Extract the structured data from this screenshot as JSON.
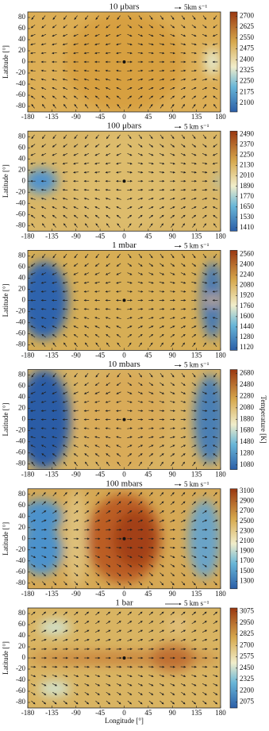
{
  "chart_data": [
    {
      "type": "heatmap",
      "title": "10 μbars",
      "wind_label": "5km s⁻¹",
      "ylabel": "Latitude [°]",
      "xlim": [
        -180,
        180
      ],
      "xticks": [
        -180,
        -135,
        -90,
        -45,
        0,
        45,
        90,
        135,
        180
      ],
      "ylim": [
        -90,
        90
      ],
      "yticks": [
        -80,
        -60,
        -40,
        -20,
        0,
        20,
        40,
        60,
        80
      ],
      "clim": [
        2040,
        2730
      ],
      "cticks": [
        2100,
        2175,
        2250,
        2325,
        2400,
        2475,
        2550,
        2625,
        2700
      ]
    },
    {
      "type": "heatmap",
      "title": "100 μbars",
      "wind_label": "5 km s⁻¹",
      "ylabel": "Latitude [°]",
      "xlim": [
        -180,
        180
      ],
      "xticks": [
        -180,
        -135,
        -90,
        -45,
        0,
        45,
        90,
        135,
        180
      ],
      "ylim": [
        -90,
        90
      ],
      "yticks": [
        -80,
        -60,
        -40,
        -20,
        0,
        20,
        40,
        60,
        80
      ],
      "clim": [
        1370,
        2530
      ],
      "cticks": [
        1410,
        1530,
        1650,
        1770,
        1890,
        2010,
        2130,
        2250,
        2370,
        2490
      ]
    },
    {
      "type": "heatmap",
      "title": "1 mbar",
      "wind_label": "5 km s⁻¹",
      "ylabel": "Latitude [°]",
      "xlim": [
        -180,
        180
      ],
      "xticks": [
        -180,
        -135,
        -90,
        -45,
        0,
        45,
        90,
        135,
        180
      ],
      "ylim": [
        -90,
        90
      ],
      "yticks": [
        -80,
        -60,
        -40,
        -20,
        0,
        20,
        40,
        60,
        80
      ],
      "clim": [
        1080,
        2620
      ],
      "cticks": [
        1120,
        1280,
        1440,
        1600,
        1760,
        1920,
        2080,
        2240,
        2400,
        2560
      ]
    },
    {
      "type": "heatmap",
      "title": "10 mbars",
      "wind_label": "5 km s⁻¹",
      "ylabel": "Latitude [°]",
      "clabel": "Temperature [K]",
      "xlim": [
        -180,
        180
      ],
      "xticks": [
        -180,
        -135,
        -90,
        -45,
        0,
        45,
        90,
        135,
        180
      ],
      "ylim": [
        -90,
        90
      ],
      "yticks": [
        -80,
        -60,
        -40,
        -20,
        0,
        20,
        40,
        60,
        80
      ],
      "clim": [
        1000,
        2750
      ],
      "cticks": [
        1080,
        1280,
        1480,
        1680,
        1880,
        2080,
        2280,
        2480,
        2680
      ]
    },
    {
      "type": "heatmap",
      "title": "100 mbars",
      "wind_label": "5 km s⁻¹",
      "ylabel": "Latitude [°]",
      "xlim": [
        -180,
        180
      ],
      "xticks": [
        -180,
        -135,
        -90,
        -45,
        0,
        45,
        90,
        135,
        180
      ],
      "ylim": [
        -90,
        90
      ],
      "yticks": [
        -80,
        -60,
        -40,
        -20,
        0,
        20,
        40,
        60,
        80
      ],
      "clim": [
        1150,
        3150
      ],
      "cticks": [
        1300,
        1500,
        1700,
        1900,
        2100,
        2300,
        2500,
        2700,
        2900,
        3100
      ]
    },
    {
      "type": "heatmap",
      "title": "1 bar",
      "wind_label": "5 km s⁻¹",
      "ylabel": "Latitude [°]",
      "xlabel": "Longitude [°]",
      "xlim": [
        -180,
        180
      ],
      "xticks": [
        -180,
        -135,
        -90,
        -45,
        0,
        45,
        90,
        135,
        180
      ],
      "ylim": [
        -90,
        90
      ],
      "yticks": [
        -80,
        -60,
        -40,
        -20,
        0,
        20,
        40,
        60,
        80
      ],
      "clim": [
        2010,
        3115
      ],
      "cticks": [
        2075,
        2200,
        2325,
        2450,
        2575,
        2700,
        2825,
        2950,
        3075
      ]
    }
  ]
}
